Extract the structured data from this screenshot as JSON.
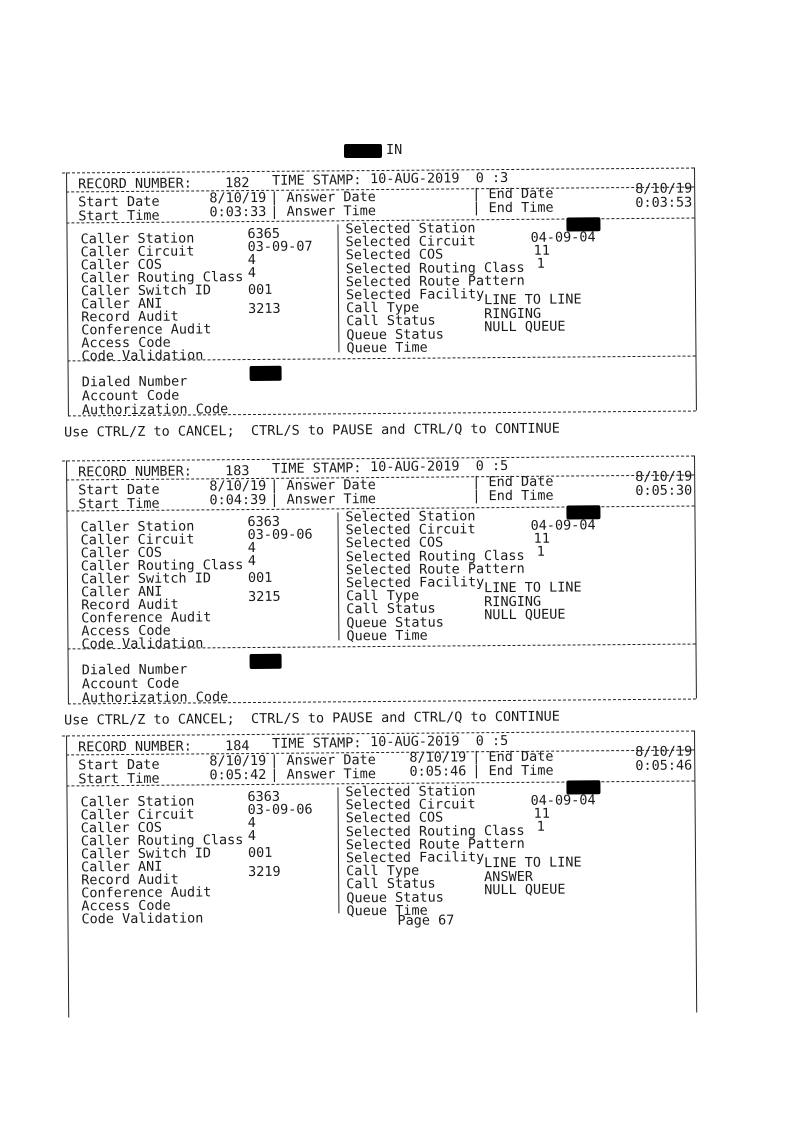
{
  "header": {
    "label": "IN"
  },
  "labels": {
    "record_number": "RECORD NUMBER:",
    "time_stamp": "TIME STAMP:",
    "start_date": "Start Date",
    "start_time": "Start Time",
    "answer_date": "| Answer Date",
    "answer_time": "| Answer Time",
    "end_date": "| End Date",
    "end_time": "| End Time",
    "left": [
      "Caller Station",
      "Caller Circuit",
      "Caller COS",
      "Caller Routing Class",
      "Caller Switch ID",
      "Caller ANI",
      "Record Audit",
      "Conference Audit",
      "Access Code",
      "Code Validation"
    ],
    "right": [
      "Selected Station",
      "Selected Circuit",
      "Selected COS",
      "Selected Routing Class",
      "Selected Route Pattern",
      "Selected Facility",
      "Call Type",
      "Call Status",
      "Queue Status",
      "Queue Time"
    ],
    "bottom": [
      "Dialed Number",
      "Account Code",
      "Authorization Code"
    ],
    "ctrl": "Use CTRL/Z to CANCEL;  CTRL/S to PAUSE and CTRL/Q to CONTINUE"
  },
  "records": [
    {
      "number": "182",
      "time_stamp": "10-AUG-2019  0 :3",
      "start_date": "8/10/19",
      "start_time": "0:03:33",
      "answer_date": "",
      "answer_time": "",
      "end_date": "8/10/19",
      "end_time": "0:03:53",
      "caller_station": "6365",
      "caller_circuit": "03-09-07",
      "caller_cos": "4",
      "caller_routing_class": "4",
      "caller_switch_id": "001",
      "record_audit": "3213",
      "selected_circuit": "04-09-04",
      "selected_cos": "11",
      "selected_routing_class": "1",
      "call_type": "LINE TO LINE",
      "call_status": "RINGING",
      "queue_status": "NULL QUEUE",
      "has_ctrl": true
    },
    {
      "number": "183",
      "time_stamp": "10-AUG-2019  0 :5",
      "start_date": "8/10/19",
      "start_time": "0:04:39",
      "answer_date": "",
      "answer_time": "",
      "end_date": "8/10/19",
      "end_time": "0:05:30",
      "caller_station": "6363",
      "caller_circuit": "03-09-06",
      "caller_cos": "4",
      "caller_routing_class": "4",
      "caller_switch_id": "001",
      "record_audit": "3215",
      "selected_circuit": "04-09-04",
      "selected_cos": "11",
      "selected_routing_class": "1",
      "call_type": "LINE TO LINE",
      "call_status": "RINGING",
      "queue_status": "NULL QUEUE",
      "has_ctrl": true
    },
    {
      "number": "184",
      "time_stamp": "10-AUG-2019  0 :5",
      "start_date": "8/10/19",
      "start_time": "0:05:42",
      "answer_date": "8/10/19",
      "answer_time": "0:05:46",
      "end_date": "8/10/19",
      "end_time": "0:05:46",
      "caller_station": "6363",
      "caller_circuit": "03-09-06",
      "caller_cos": "4",
      "caller_routing_class": "4",
      "caller_switch_id": "001",
      "record_audit": "3219",
      "selected_circuit": "04-09-04",
      "selected_cos": "11",
      "selected_routing_class": "1",
      "call_type": "LINE TO LINE",
      "call_status": "ANSWER",
      "queue_status": "NULL QUEUE",
      "has_ctrl": false
    }
  ],
  "footer": {
    "page": "Page 67"
  }
}
